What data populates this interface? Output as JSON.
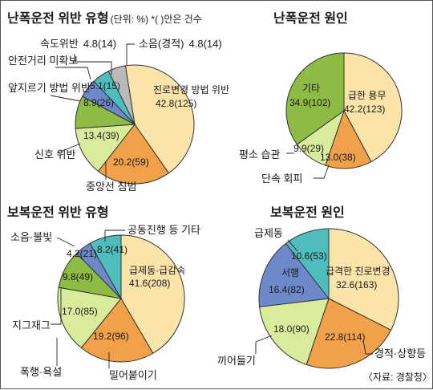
{
  "source": "〈자료: 경찰청〉",
  "colors": {
    "lightyellow": "#fbe4a9",
    "orange": "#f0a14a",
    "lightgreen": "#d9ec9c",
    "green": "#8dbb43",
    "blue": "#6e89c9",
    "teal": "#4fbcbd",
    "gray": "#b9b9b9",
    "ink": "#1a1a1a"
  },
  "chart_data": [
    {
      "type": "pie",
      "title": "난폭운전 위반 유형",
      "subtitle": "(단위: %) *( )안은 건수",
      "slices": [
        {
          "label": "진로변경 방법 위반",
          "value": 42.8,
          "count": 125,
          "text": "42.8(125)",
          "color": "lightyellow"
        },
        {
          "label": "중앙선 침범",
          "value": 20.2,
          "count": 59,
          "text": "20.2(59)",
          "color": "orange"
        },
        {
          "label": "신호 위반",
          "value": 13.4,
          "count": 39,
          "text": "13.4(39)",
          "color": "lightgreen"
        },
        {
          "label": "앞지르기 방법 위반",
          "value": 8.9,
          "count": 26,
          "text": "8.9(26)",
          "color": "green"
        },
        {
          "label": "안전거리 미확보",
          "value": 5.1,
          "count": 15,
          "text": "5.1(15)",
          "color": "blue"
        },
        {
          "label": "속도위반",
          "value": 4.8,
          "count": 14,
          "text": "4.8(14)",
          "color": "teal"
        },
        {
          "label": "소음(경적)",
          "value": 4.8,
          "count": 14,
          "text": "4.8(14)",
          "color": "gray"
        }
      ]
    },
    {
      "type": "pie",
      "title": "난폭운전 원인",
      "slices": [
        {
          "label": "급한 용무",
          "value": 42.2,
          "count": 123,
          "text": "42.2(123)",
          "color": "lightyellow"
        },
        {
          "label": "단속 회피",
          "value": 13.0,
          "count": 38,
          "text": "13.0(38)",
          "color": "orange"
        },
        {
          "label": "평소 습관",
          "value": 9.9,
          "count": 29,
          "text": "9.9(29)",
          "color": "lightgreen"
        },
        {
          "label": "기타",
          "value": 34.9,
          "count": 102,
          "text": "34.9(102)",
          "color": "green"
        }
      ]
    },
    {
      "type": "pie",
      "title": "보복운전 위반 유형",
      "slices": [
        {
          "label": "급제동·급감속",
          "value": 41.6,
          "count": 208,
          "text": "41.6(208)",
          "color": "lightyellow"
        },
        {
          "label": "밀어붙이기",
          "value": 19.2,
          "count": 96,
          "text": "19.2(96)",
          "color": "orange"
        },
        {
          "label": "폭행·욕설",
          "value": 17.0,
          "count": 85,
          "text": "17.0(85)",
          "color": "lightgreen"
        },
        {
          "label": "지그재그",
          "value": 9.8,
          "count": 49,
          "text": "9.8(49)",
          "color": "green"
        },
        {
          "label": "소음·불빛",
          "value": 4.2,
          "count": 21,
          "text": "4.2(21)",
          "color": "blue"
        },
        {
          "label": "공동진행 등 기타",
          "value": 8.2,
          "count": 41,
          "text": "8.2(41)",
          "color": "teal"
        }
      ]
    },
    {
      "type": "pie",
      "title": "보복운전 원인",
      "slices": [
        {
          "label": "급격한 진로변경",
          "value": 32.6,
          "count": 163,
          "text": "32.6(163)",
          "color": "lightyellow"
        },
        {
          "label": "경적·상향등",
          "value": 22.8,
          "count": 114,
          "text": "22.8(114)",
          "color": "orange"
        },
        {
          "label": "끼어들기",
          "value": 18.0,
          "count": 90,
          "text": "18.0(90)",
          "color": "lightgreen"
        },
        {
          "label": "서행",
          "value": 16.4,
          "count": 82,
          "text": "16.4(82)",
          "color": "blue"
        },
        {
          "label": "급제동",
          "value": 10.6,
          "count": 53,
          "text": "10.6(53)",
          "color": "teal"
        }
      ]
    }
  ]
}
